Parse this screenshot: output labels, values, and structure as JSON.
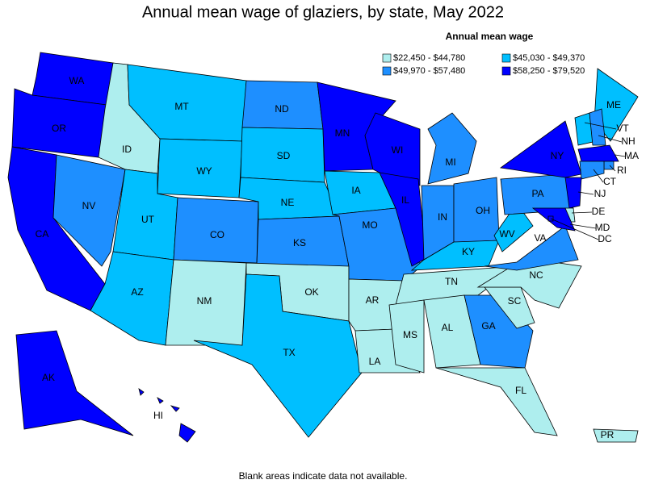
{
  "title": "Annual mean wage of glaziers, by state, May 2022",
  "legend": {
    "title": "Annual mean wage",
    "classes": [
      {
        "label": "$22,450 - $44,780",
        "color": "#aeeeee"
      },
      {
        "label": "$45,030 - $49,370",
        "color": "#00bfff"
      },
      {
        "label": "$49,970 - $57,480",
        "color": "#1e8fff"
      },
      {
        "label": "$58,250 - $79,520",
        "color": "#0000ff"
      }
    ]
  },
  "states": [
    {
      "label": "WA",
      "class": 3
    },
    {
      "label": "OR",
      "class": 3
    },
    {
      "label": "CA",
      "class": 3
    },
    {
      "label": "NV",
      "class": 2
    },
    {
      "label": "ID",
      "class": 0
    },
    {
      "label": "MT",
      "class": 1
    },
    {
      "label": "WY",
      "class": 1
    },
    {
      "label": "UT",
      "class": 1
    },
    {
      "label": "AZ",
      "class": 1
    },
    {
      "label": "CO",
      "class": 2
    },
    {
      "label": "NM",
      "class": 0
    },
    {
      "label": "ND",
      "class": 2
    },
    {
      "label": "SD",
      "class": 1
    },
    {
      "label": "NE",
      "class": 1
    },
    {
      "label": "KS",
      "class": 2
    },
    {
      "label": "OK",
      "class": 0
    },
    {
      "label": "TX",
      "class": 1
    },
    {
      "label": "MN",
      "class": 3
    },
    {
      "label": "IA",
      "class": 1
    },
    {
      "label": "MO",
      "class": 2
    },
    {
      "label": "AR",
      "class": 0
    },
    {
      "label": "LA",
      "class": 0
    },
    {
      "label": "WI",
      "class": 3
    },
    {
      "label": "IL",
      "class": 3
    },
    {
      "label": "MI",
      "class": 2
    },
    {
      "label": "IN",
      "class": 2
    },
    {
      "label": "OH",
      "class": 2
    },
    {
      "label": "KY",
      "class": 1
    },
    {
      "label": "TN",
      "class": 0
    },
    {
      "label": "MS",
      "class": 0
    },
    {
      "label": "AL",
      "class": 0
    },
    {
      "label": "GA",
      "class": 2
    },
    {
      "label": "FL",
      "class": 0
    },
    {
      "label": "SC",
      "class": 0
    },
    {
      "label": "NC",
      "class": 0
    },
    {
      "label": "VA",
      "class": 2
    },
    {
      "label": "WV",
      "class": 1
    },
    {
      "label": "PA",
      "class": 2
    },
    {
      "label": "NY",
      "class": 3
    },
    {
      "label": "ME",
      "class": 1
    },
    {
      "label": "VT",
      "class": 1
    },
    {
      "label": "NH",
      "class": 2
    },
    {
      "label": "MA",
      "class": 3
    },
    {
      "label": "RI",
      "class": 2
    },
    {
      "label": "CT",
      "class": 2
    },
    {
      "label": "NJ",
      "class": 3
    },
    {
      "label": "DE",
      "class": 0
    },
    {
      "label": "MD",
      "class": 3
    },
    {
      "label": "DC",
      "class": 3
    },
    {
      "label": "AK",
      "class": 3
    },
    {
      "label": "HI",
      "class": 3
    },
    {
      "label": "PR",
      "class": 0
    }
  ],
  "note": "Blank areas indicate data not available."
}
